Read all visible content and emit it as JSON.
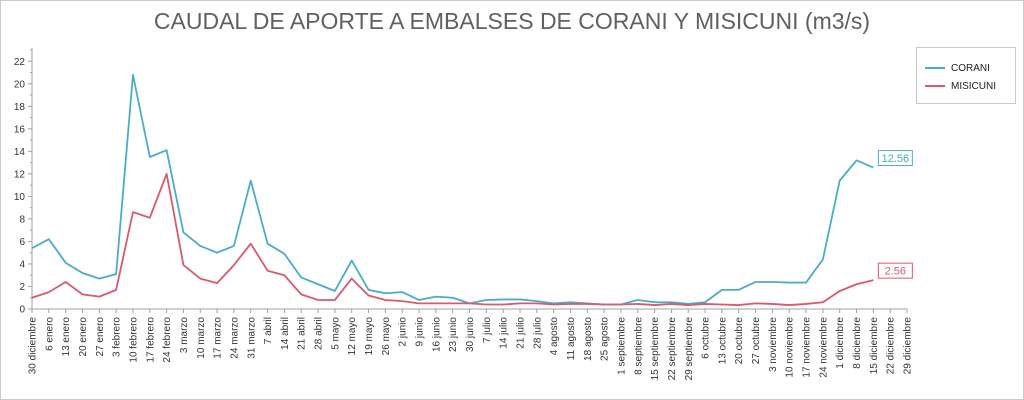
{
  "chart_data": {
    "type": "line",
    "title": "CAUDAL DE APORTE A EMBALSES DE CORANI Y MISICUNI (m3/s)",
    "xlabel": "",
    "ylabel": "",
    "ylim": [
      0,
      23
    ],
    "yticks": [
      0,
      2,
      4,
      6,
      8,
      10,
      12,
      14,
      16,
      18,
      20,
      22
    ],
    "grid": false,
    "legend_position": "right",
    "categories": [
      "30 diciembre",
      "6 enero",
      "13 enero",
      "20 enero",
      "27 enero",
      "3 febrero",
      "10 febrero",
      "17 febrero",
      "24 febrero",
      "3 marzo",
      "10 marzo",
      "17 marzo",
      "24 marzo",
      "31 marzo",
      "7 abril",
      "14 abril",
      "21 abril",
      "28 abril",
      "5 mayo",
      "12 mayo",
      "19 mayo",
      "26 mayo",
      "2 junio",
      "9 junio",
      "16 junio",
      "23 junio",
      "30 junio",
      "7 julio",
      "14 julio",
      "21 julio",
      "28 julio",
      "4 agosto",
      "11 agosto",
      "18 agosto",
      "25 agosto",
      "1 septiembre",
      "8 septiembre",
      "15 septiembre",
      "22 septiembre",
      "29 septiembre",
      "6 octubre",
      "13 octubre",
      "20 octubre",
      "27 octubre",
      "3 noviembre",
      "10 noviembre",
      "17 noviembre",
      "24 noviembre",
      "1 diciembre",
      "8 diciembre",
      "15 diciembre",
      "22 diciembre",
      "29 diciembre"
    ],
    "series": [
      {
        "name": "CORANI",
        "color": "#4bacc6",
        "end_label": "12.56",
        "values": [
          5.4,
          6.2,
          4.1,
          3.2,
          2.7,
          3.1,
          20.8,
          13.5,
          14.1,
          6.8,
          5.6,
          5.0,
          5.6,
          11.4,
          5.8,
          4.9,
          2.8,
          2.2,
          1.6,
          4.3,
          1.7,
          1.4,
          1.5,
          0.8,
          1.1,
          1.0,
          0.5,
          0.8,
          0.85,
          0.85,
          0.7,
          0.5,
          0.6,
          0.5,
          0.4,
          0.4,
          0.8,
          0.6,
          0.6,
          0.45,
          0.6,
          1.7,
          1.7,
          2.4,
          2.4,
          2.35,
          2.35,
          4.4,
          11.4,
          13.2,
          12.56,
          null,
          null
        ]
      },
      {
        "name": "MISICUNI",
        "color": "#d9596e",
        "end_label": "2.56",
        "values": [
          1.0,
          1.5,
          2.4,
          1.3,
          1.1,
          1.7,
          8.6,
          8.1,
          12.0,
          3.9,
          2.7,
          2.3,
          3.9,
          5.8,
          3.4,
          3.0,
          1.3,
          0.8,
          0.8,
          2.7,
          1.2,
          0.8,
          0.7,
          0.5,
          0.5,
          0.5,
          0.5,
          0.4,
          0.4,
          0.5,
          0.5,
          0.4,
          0.45,
          0.45,
          0.4,
          0.4,
          0.45,
          0.35,
          0.45,
          0.35,
          0.45,
          0.4,
          0.35,
          0.5,
          0.45,
          0.35,
          0.45,
          0.6,
          1.6,
          2.2,
          2.56,
          null,
          null
        ]
      }
    ]
  }
}
